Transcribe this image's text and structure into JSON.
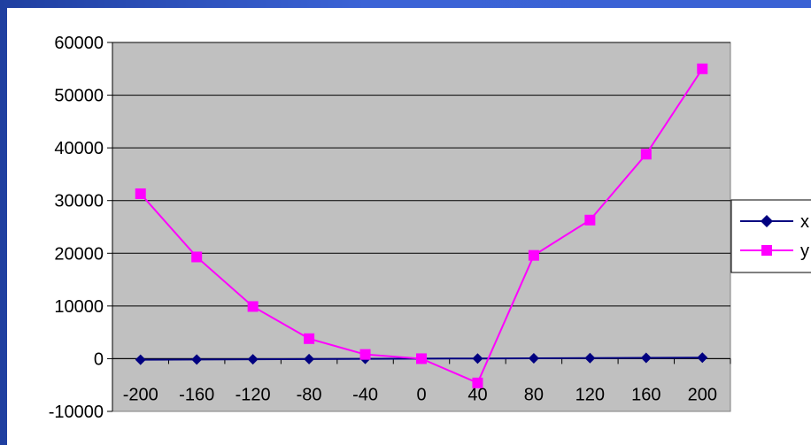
{
  "chart_data": {
    "type": "line",
    "x": [
      -200,
      -160,
      -120,
      -80,
      -40,
      0,
      40,
      80,
      120,
      160,
      200
    ],
    "categories": [
      "-200",
      "-160",
      "-120",
      "-80",
      "-40",
      "0",
      "40",
      "80",
      "120",
      "160",
      "200"
    ],
    "series": [
      {
        "name": "x",
        "values": [
          -200,
          -160,
          -120,
          -80,
          -40,
          0,
          40,
          80,
          120,
          160,
          200
        ],
        "color": "#000080",
        "marker": "diamond"
      },
      {
        "name": "y",
        "values": [
          31300,
          19300,
          9900,
          3800,
          800,
          0,
          -4600,
          19600,
          26300,
          38800,
          55000
        ],
        "color": "#ff00ff",
        "marker": "square"
      }
    ],
    "yticks": [
      "60000",
      "50000",
      "40000",
      "30000",
      "20000",
      "10000",
      "0",
      "-10000"
    ],
    "ytick_values": [
      60000,
      50000,
      40000,
      30000,
      20000,
      10000,
      0,
      -10000
    ],
    "ylim": [
      -10000,
      60000
    ],
    "grid": true,
    "plot_background": "#c0c0c0",
    "legend": "right",
    "title": "",
    "xlabel": "",
    "ylabel": ""
  }
}
